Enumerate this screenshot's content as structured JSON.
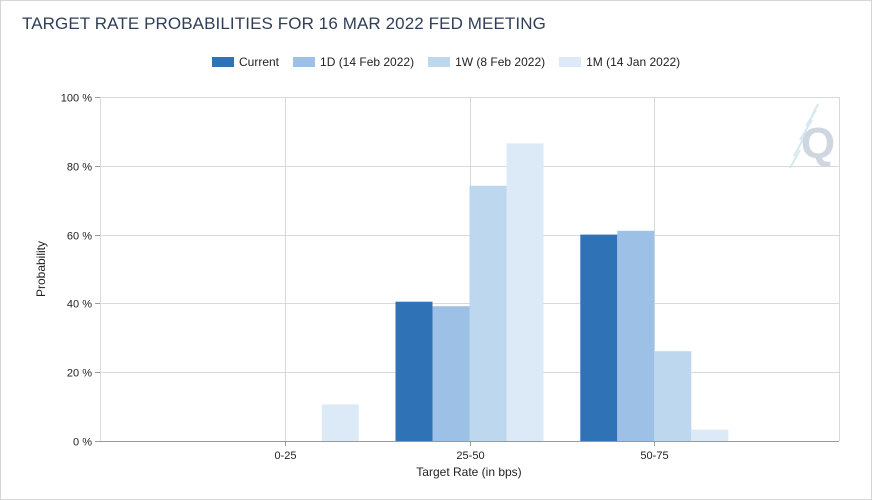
{
  "colors": {
    "current": "#2f72b6",
    "d1": "#9dc1e6",
    "w1": "#bdd7ef",
    "m1": "#dce9f6",
    "grid": "#d9d9d9",
    "axis": "#9a9a9a",
    "watermark": "#c9d3dc"
  },
  "watermark": {
    "letter": "Q",
    "icon": "q-logo-watermark-icon"
  },
  "chart_data": {
    "type": "bar",
    "title": "TARGET RATE PROBABILITIES FOR 16 MAR 2022 FED MEETING",
    "xlabel": "Target Rate (in bps)",
    "ylabel": "Probability",
    "categories": [
      "0-25",
      "25-50",
      "50-75"
    ],
    "ylim": [
      0,
      100
    ],
    "yticks": [
      {
        "value": 0,
        "label": "0 %"
      },
      {
        "value": 20,
        "label": "20 %"
      },
      {
        "value": 40,
        "label": "40 %"
      },
      {
        "value": 60,
        "label": "60 %"
      },
      {
        "value": 80,
        "label": "80 %"
      },
      {
        "value": 100,
        "label": "100 %"
      }
    ],
    "grid": true,
    "legend_position": "top-center",
    "series": [
      {
        "key": "current",
        "name": "Current",
        "values": [
          0,
          40.5,
          60
        ]
      },
      {
        "key": "d1",
        "name": "1D (14 Feb 2022)",
        "values": [
          0,
          39.2,
          61.1
        ]
      },
      {
        "key": "w1",
        "name": "1W (8 Feb 2022)",
        "values": [
          0,
          74.2,
          26.1
        ]
      },
      {
        "key": "m1",
        "name": "1M (14 Jan 2022)",
        "values": [
          10.6,
          86.5,
          3.3
        ]
      }
    ]
  }
}
